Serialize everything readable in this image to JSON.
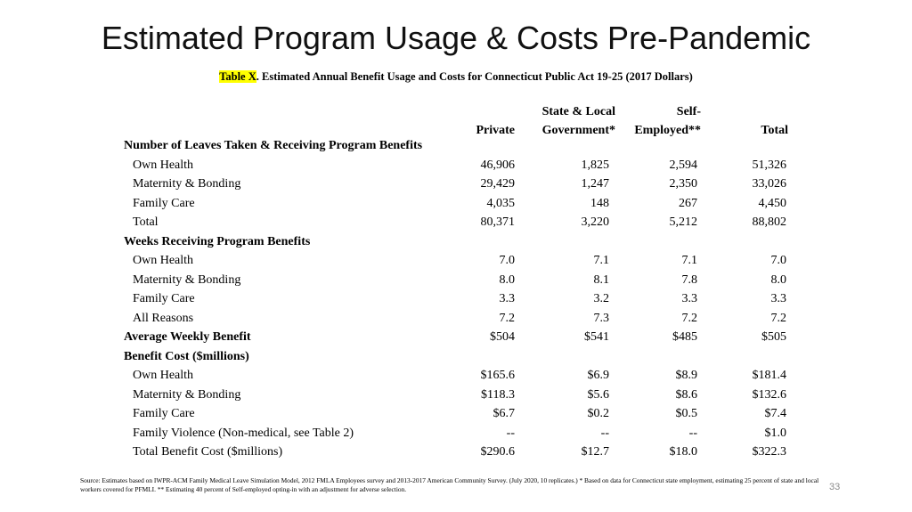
{
  "slide": {
    "title": "Estimated Program Usage & Costs Pre-Pandemic",
    "page_number": "33",
    "highlight_color": "#ffff00"
  },
  "caption": {
    "highlight": "Table X",
    "text": ". Estimated Annual Benefit Usage and Costs for Connecticut Public Act 19-25 (2017 Dollars)"
  },
  "table": {
    "columns": [
      {
        "line1": "",
        "line2": "Private"
      },
      {
        "line1": "State & Local",
        "line2": "Government*"
      },
      {
        "line1": "Self-",
        "line2": "Employed**"
      },
      {
        "line1": "",
        "line2": "Total"
      }
    ],
    "rows": [
      {
        "label": "Number of Leaves Taken & Receiving Program Benefits",
        "section": true,
        "values": [
          "",
          "",
          "",
          ""
        ]
      },
      {
        "label": "Own Health",
        "section": false,
        "values": [
          "46,906",
          "1,825",
          "2,594",
          "51,326"
        ]
      },
      {
        "label": "Maternity & Bonding",
        "section": false,
        "values": [
          "29,429",
          "1,247",
          "2,350",
          "33,026"
        ]
      },
      {
        "label": "Family Care",
        "section": false,
        "values": [
          "4,035",
          "148",
          "267",
          "4,450"
        ]
      },
      {
        "label": "Total",
        "section": false,
        "values": [
          "80,371",
          "3,220",
          "5,212",
          "88,802"
        ]
      },
      {
        "label": "Weeks Receiving Program Benefits",
        "section": true,
        "values": [
          "",
          "",
          "",
          ""
        ]
      },
      {
        "label": "Own Health",
        "section": false,
        "values": [
          "7.0",
          "7.1",
          "7.1",
          "7.0"
        ]
      },
      {
        "label": "Maternity & Bonding",
        "section": false,
        "values": [
          "8.0",
          "8.1",
          "7.8",
          "8.0"
        ]
      },
      {
        "label": "Family Care",
        "section": false,
        "values": [
          "3.3",
          "3.2",
          "3.3",
          "3.3"
        ]
      },
      {
        "label": "All Reasons",
        "section": false,
        "values": [
          "7.2",
          "7.3",
          "7.2",
          "7.2"
        ]
      },
      {
        "label": "Average Weekly Benefit",
        "section": true,
        "values": [
          "$504",
          "$541",
          "$485",
          "$505"
        ]
      },
      {
        "label": "Benefit Cost ($millions)",
        "section": true,
        "values": [
          "",
          "",
          "",
          ""
        ]
      },
      {
        "label": "Own Health",
        "section": false,
        "values": [
          "$165.6",
          "$6.9",
          "$8.9",
          "$181.4"
        ]
      },
      {
        "label": "Maternity & Bonding",
        "section": false,
        "values": [
          "$118.3",
          "$5.6",
          "$8.6",
          "$132.6"
        ]
      },
      {
        "label": "Family Care",
        "section": false,
        "values": [
          "$6.7",
          "$0.2",
          "$0.5",
          "$7.4"
        ]
      },
      {
        "label": "Family Violence (Non-medical, see Table 2)",
        "section": false,
        "values": [
          "--",
          "--",
          "--",
          "$1.0"
        ]
      },
      {
        "label": "Total Benefit Cost ($millions)",
        "section": false,
        "values": [
          "$290.6",
          "$12.7",
          "$18.0",
          "$322.3"
        ]
      }
    ]
  },
  "source_note": "Source: Estimates based on IWPR-ACM Family Medical Leave Simulation Model, 2012 FMLA Employees survey and 2013-2017 American Community Survey. (July 2020, 10 replicates.) * Based on data for Connecticut state employment, estimating 25 percent of state and local workers covered for PFMLI. ** Estimating 40 percent of Self-employed opting-in with an adjustment for adverse selection."
}
